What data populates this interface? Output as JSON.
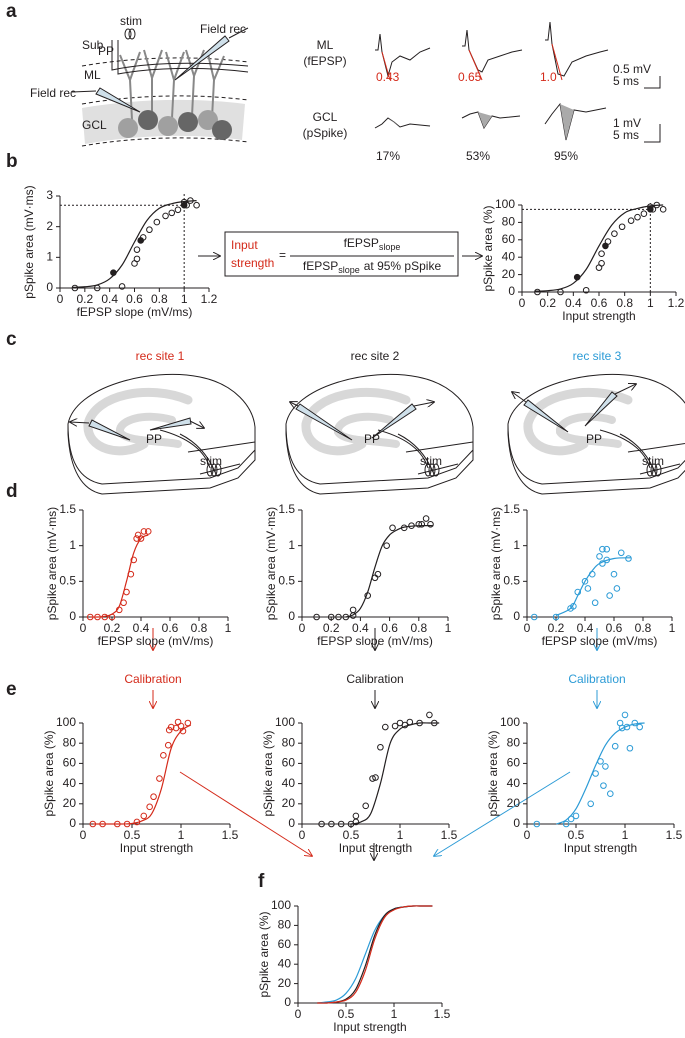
{
  "panel_labels": [
    "a",
    "b",
    "c",
    "d",
    "e",
    "f"
  ],
  "panel_a": {
    "stim": "stim",
    "pp": "PP",
    "sub": "Sub",
    "ml": "ML",
    "gcl": "GCL",
    "field_rec": [
      "Field rec",
      "Field rec"
    ],
    "rows": [
      {
        "name": "ML",
        "unit": "(fEPSP)",
        "labels": [
          "0.43",
          "0.65",
          "1.0"
        ],
        "scale_y": "0.5 mV",
        "scale_x": "5 ms"
      },
      {
        "name": "GCL",
        "unit": "(pSpike)",
        "labels": [
          "17%",
          "53%",
          "95%"
        ],
        "scale_y": "1 mV",
        "scale_x": "5 ms"
      }
    ]
  },
  "equation": {
    "lhs": [
      "Input",
      "strength"
    ],
    "equals": "=",
    "numerator": {
      "text": "fEPSP",
      "sub": "slope"
    },
    "denominator": {
      "text": "fEPSP",
      "sub": "slope",
      "suffix": "at 95% pSpike"
    }
  },
  "sites": [
    {
      "label": "rec site 1",
      "color": "#d42a1a",
      "pp": "PP",
      "stim": "stim"
    },
    {
      "label": "rec site 2",
      "color": "#231f20",
      "pp": "PP",
      "stim": "stim"
    },
    {
      "label": "rec site 3",
      "color": "#2c9bd6",
      "pp": "PP",
      "stim": "stim"
    }
  ],
  "calibration": [
    "Calibration",
    "Calibration",
    "Calibration"
  ],
  "chart_data": [
    {
      "type": "scatter",
      "xlabel": "fEPSP slope (mV/ms)",
      "ylabel": "pSpike area (mV·ms)",
      "xlim": [
        0,
        1.2
      ],
      "ylim": [
        0,
        3
      ],
      "xticks": [
        0,
        0.2,
        0.4,
        0.6,
        0.8,
        1,
        1.2
      ],
      "yticks": [
        0,
        1,
        2,
        3
      ],
      "guides": {
        "x": 1,
        "y": 2.7
      },
      "series": [
        {
          "style": "line",
          "color": "#231f20",
          "x": [
            0.1,
            0.2,
            0.3,
            0.4,
            0.5,
            0.6,
            0.7,
            0.8,
            0.9,
            1.0,
            1.1
          ],
          "values": [
            0.02,
            0.04,
            0.1,
            0.3,
            0.75,
            1.5,
            2.2,
            2.6,
            2.75,
            2.82,
            2.85
          ]
        },
        {
          "style": "open",
          "color": "#231f20",
          "x": [
            0.12,
            0.3,
            0.5,
            0.6,
            0.62,
            0.62,
            0.67,
            0.72,
            0.78,
            0.85,
            0.9,
            0.95,
            1.0,
            1.02,
            1.05,
            1.1
          ],
          "values": [
            0,
            0,
            0.05,
            0.8,
            0.95,
            1.25,
            1.65,
            1.9,
            2.15,
            2.35,
            2.45,
            2.55,
            2.8,
            2.7,
            2.85,
            2.7
          ]
        },
        {
          "style": "filled",
          "color": "#231f20",
          "x": [
            0.43,
            0.65,
            1.0
          ],
          "values": [
            0.5,
            1.55,
            2.7
          ]
        }
      ]
    },
    {
      "type": "scatter",
      "xlabel": "Input strength",
      "ylabel": "pSpike area (%)",
      "xlim": [
        0,
        1.2
      ],
      "ylim": [
        0,
        100
      ],
      "xticks": [
        0,
        0.2,
        0.4,
        0.6,
        0.8,
        1,
        1.2
      ],
      "yticks": [
        0,
        20,
        40,
        60,
        80,
        100
      ],
      "guides": {
        "x": 1,
        "y": 95
      },
      "series": [
        {
          "style": "line",
          "color": "#231f20",
          "x": [
            0.1,
            0.2,
            0.3,
            0.4,
            0.5,
            0.6,
            0.7,
            0.8,
            0.9,
            1.0,
            1.1
          ],
          "values": [
            1,
            1.5,
            3.5,
            10,
            26,
            53,
            77,
            91,
            96,
            99,
            100
          ]
        },
        {
          "style": "open",
          "color": "#231f20",
          "x": [
            0.12,
            0.3,
            0.5,
            0.6,
            0.62,
            0.62,
            0.67,
            0.72,
            0.78,
            0.85,
            0.9,
            0.95,
            1.0,
            1.02,
            1.05,
            1.1
          ],
          "values": [
            0,
            0,
            2,
            28,
            33,
            44,
            58,
            67,
            75,
            82,
            86,
            90,
            98,
            95,
            100,
            95
          ]
        },
        {
          "style": "filled",
          "color": "#231f20",
          "x": [
            0.43,
            0.65,
            1.0
          ],
          "values": [
            17,
            53,
            95
          ]
        }
      ]
    },
    {
      "type": "scatter",
      "xlabel": "fEPSP slope (mV/ms)",
      "ylabel": "pSpike area (mV·ms)",
      "xlim": [
        0,
        1
      ],
      "ylim": [
        0,
        1.5
      ],
      "xticks": [
        0,
        0.2,
        0.4,
        0.6,
        0.8,
        1
      ],
      "yticks": [
        0,
        0.5,
        1,
        1.5
      ],
      "series": [
        {
          "style": "line",
          "color": "#d42a1a",
          "x": [
            0.05,
            0.1,
            0.15,
            0.2,
            0.25,
            0.3,
            0.35,
            0.4,
            0.45
          ],
          "values": [
            0,
            0,
            0.01,
            0.04,
            0.15,
            0.5,
            0.9,
            1.1,
            1.15
          ]
        },
        {
          "style": "open",
          "color": "#d42a1a",
          "x": [
            0.05,
            0.1,
            0.15,
            0.2,
            0.25,
            0.28,
            0.3,
            0.33,
            0.35,
            0.37,
            0.38,
            0.4,
            0.42,
            0.45
          ],
          "values": [
            0,
            0,
            0,
            0,
            0.1,
            0.2,
            0.35,
            0.6,
            0.8,
            1.1,
            1.15,
            1.1,
            1.2,
            1.2
          ]
        }
      ]
    },
    {
      "type": "scatter",
      "xlabel": "fEPSP slope (mV/ms)",
      "ylabel": "pSpike area (mV·ms)",
      "xlim": [
        0,
        1
      ],
      "ylim": [
        0,
        1.5
      ],
      "xticks": [
        0,
        0.2,
        0.4,
        0.6,
        0.8,
        1
      ],
      "yticks": [
        0,
        0.5,
        1,
        1.5
      ],
      "series": [
        {
          "style": "line",
          "color": "#231f20",
          "x": [
            0.3,
            0.35,
            0.4,
            0.45,
            0.5,
            0.55,
            0.6,
            0.65,
            0.7,
            0.8,
            0.9
          ],
          "values": [
            0,
            0.03,
            0.12,
            0.35,
            0.7,
            1.0,
            1.15,
            1.22,
            1.26,
            1.28,
            1.28
          ]
        },
        {
          "style": "open",
          "color": "#231f20",
          "x": [
            0.1,
            0.2,
            0.25,
            0.3,
            0.35,
            0.35,
            0.45,
            0.5,
            0.52,
            0.58,
            0.62,
            0.7,
            0.75,
            0.8,
            0.85,
            0.88,
            0.82
          ],
          "values": [
            0,
            0,
            0,
            0,
            0.02,
            0.1,
            0.3,
            0.55,
            0.6,
            1.0,
            1.25,
            1.25,
            1.28,
            1.3,
            1.38,
            1.3,
            1.3
          ]
        }
      ]
    },
    {
      "type": "scatter",
      "xlabel": "fEPSP slope (mV/ms)",
      "ylabel": "pSpike area (mV·ms)",
      "xlim": [
        0,
        1
      ],
      "ylim": [
        0,
        1.5
      ],
      "xticks": [
        0,
        0.2,
        0.4,
        0.6,
        0.8,
        1
      ],
      "yticks": [
        0,
        0.5,
        1,
        1.5
      ],
      "series": [
        {
          "style": "line",
          "color": "#2c9bd6",
          "x": [
            0.2,
            0.3,
            0.35,
            0.4,
            0.45,
            0.5,
            0.6,
            0.72
          ],
          "values": [
            0.02,
            0.12,
            0.3,
            0.5,
            0.65,
            0.75,
            0.82,
            0.83
          ]
        },
        {
          "style": "open",
          "color": "#2c9bd6",
          "x": [
            0.05,
            0.2,
            0.3,
            0.32,
            0.35,
            0.4,
            0.42,
            0.45,
            0.47,
            0.5,
            0.52,
            0.52,
            0.55,
            0.55,
            0.57,
            0.6,
            0.62,
            0.65,
            0.7
          ],
          "values": [
            0,
            0,
            0.12,
            0.15,
            0.35,
            0.5,
            0.4,
            0.6,
            0.2,
            0.85,
            0.95,
            0.75,
            0.8,
            0.95,
            0.3,
            0.6,
            0.4,
            0.9,
            0.82
          ]
        }
      ]
    },
    {
      "type": "scatter",
      "xlabel": "Input strength",
      "ylabel": "pSpike area (%)",
      "xlim": [
        0,
        1.5
      ],
      "ylim": [
        0,
        100
      ],
      "xticks": [
        0,
        0.5,
        1,
        1.5
      ],
      "yticks": [
        0,
        20,
        40,
        60,
        80,
        100
      ],
      "series": [
        {
          "style": "line",
          "color": "#d42a1a",
          "x": [
            0.1,
            0.2,
            0.3,
            0.4,
            0.5,
            0.6,
            0.7,
            0.8,
            0.9,
            1.0,
            1.1
          ],
          "values": [
            0,
            0,
            0,
            0,
            0.5,
            3,
            10,
            35,
            75,
            92,
            98
          ]
        },
        {
          "style": "open",
          "color": "#d42a1a",
          "x": [
            0.1,
            0.2,
            0.35,
            0.45,
            0.55,
            0.62,
            0.68,
            0.72,
            0.78,
            0.82,
            0.87,
            0.88,
            0.9,
            0.95,
            0.97,
            1.0,
            1.02,
            1.07
          ],
          "values": [
            0,
            0,
            0,
            0,
            2,
            8,
            17,
            27,
            45,
            68,
            78,
            93,
            96,
            95,
            101,
            97,
            92,
            100
          ]
        }
      ]
    },
    {
      "type": "scatter",
      "xlabel": "Input strength",
      "ylabel": "pSpike area (%)",
      "xlim": [
        0,
        1.5
      ],
      "ylim": [
        0,
        100
      ],
      "xticks": [
        0,
        0.5,
        1,
        1.5
      ],
      "yticks": [
        0,
        20,
        40,
        60,
        80,
        100
      ],
      "series": [
        {
          "style": "line",
          "color": "#231f20",
          "x": [
            0.5,
            0.6,
            0.7,
            0.8,
            0.9,
            1.0,
            1.1,
            1.2,
            1.3,
            1.4
          ],
          "values": [
            0,
            2,
            10,
            40,
            80,
            94,
            98,
            100,
            100,
            100
          ]
        },
        {
          "style": "open",
          "color": "#231f20",
          "x": [
            0.2,
            0.3,
            0.4,
            0.5,
            0.55,
            0.55,
            0.65,
            0.72,
            0.75,
            0.8,
            0.85,
            0.95,
            1.0,
            1.05,
            1.2,
            1.3,
            1.35,
            1.1
          ],
          "values": [
            0,
            0,
            0,
            0,
            2,
            8,
            18,
            45,
            46,
            76,
            96,
            97,
            100,
            98,
            100,
            108,
            100,
            101
          ]
        }
      ]
    },
    {
      "type": "scatter",
      "xlabel": "Input strength",
      "ylabel": "pSpike area (%)",
      "xlim": [
        0,
        1.5
      ],
      "ylim": [
        0,
        100
      ],
      "xticks": [
        0,
        0.5,
        1,
        1.5
      ],
      "yticks": [
        0,
        20,
        40,
        60,
        80,
        100
      ],
      "series": [
        {
          "style": "line",
          "color": "#2c9bd6",
          "x": [
            0.3,
            0.4,
            0.5,
            0.6,
            0.7,
            0.8,
            0.9,
            1.0,
            1.1,
            1.2
          ],
          "values": [
            0,
            4,
            15,
            35,
            58,
            78,
            90,
            96,
            99,
            100
          ]
        },
        {
          "style": "open",
          "color": "#2c9bd6",
          "x": [
            0.1,
            0.4,
            0.45,
            0.5,
            0.65,
            0.7,
            0.75,
            0.8,
            0.85,
            0.9,
            0.95,
            0.97,
            1.0,
            1.02,
            1.1,
            1.15,
            1.05,
            0.78
          ],
          "values": [
            0,
            0,
            5,
            8,
            20,
            50,
            62,
            57,
            30,
            77,
            100,
            95,
            108,
            96,
            100,
            96,
            75,
            38
          ]
        }
      ]
    },
    {
      "type": "line",
      "xlabel": "Input strength",
      "ylabel": "pSpike area (%)",
      "xlim": [
        0,
        1.5
      ],
      "ylim": [
        0,
        100
      ],
      "xticks": [
        0,
        0.5,
        1,
        1.5
      ],
      "yticks": [
        0,
        20,
        40,
        60,
        80,
        100
      ],
      "series": [
        {
          "style": "line",
          "color": "#2c9bd6",
          "x": [
            0.2,
            0.3,
            0.4,
            0.5,
            0.6,
            0.7,
            0.8,
            0.9,
            1.0,
            1.1,
            1.2,
            1.3,
            1.4
          ],
          "values": [
            0,
            1,
            3,
            10,
            25,
            50,
            75,
            90,
            97,
            99,
            100,
            100,
            100
          ]
        },
        {
          "style": "line",
          "color": "#231f20",
          "x": [
            0.2,
            0.3,
            0.4,
            0.5,
            0.6,
            0.7,
            0.8,
            0.9,
            1.0,
            1.1,
            1.2,
            1.3,
            1.4
          ],
          "values": [
            0,
            0,
            1,
            4,
            14,
            38,
            70,
            90,
            97,
            99,
            100,
            100,
            100
          ]
        },
        {
          "style": "line",
          "color": "#d42a1a",
          "x": [
            0.2,
            0.3,
            0.4,
            0.5,
            0.6,
            0.7,
            0.8,
            0.9,
            1.0,
            1.1,
            1.2,
            1.3,
            1.4
          ],
          "values": [
            0,
            0,
            1,
            3,
            11,
            33,
            66,
            88,
            96,
            99,
            100,
            100,
            100
          ]
        }
      ]
    }
  ]
}
